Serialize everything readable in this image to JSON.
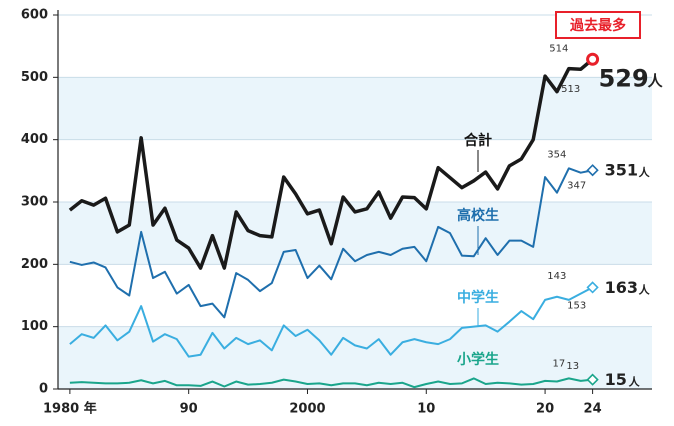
{
  "chart_data": {
    "type": "line",
    "x": [
      1980,
      1981,
      1982,
      1983,
      1984,
      1985,
      1986,
      1987,
      1988,
      1989,
      1990,
      1991,
      1992,
      1993,
      1994,
      1995,
      1996,
      1997,
      1998,
      1999,
      2000,
      2001,
      2002,
      2003,
      2004,
      2005,
      2006,
      2007,
      2008,
      2009,
      2010,
      2011,
      2012,
      2013,
      2014,
      2015,
      2016,
      2017,
      2018,
      2019,
      2020,
      2021,
      2022,
      2023,
      2024
    ],
    "series": [
      {
        "name": "合計",
        "color": "#1a1a1a",
        "values": [
          287,
          302,
          295,
          306,
          252,
          263,
          403,
          263,
          290,
          239,
          226,
          194,
          246,
          194,
          284,
          254,
          246,
          244,
          340,
          313,
          281,
          287,
          233,
          308,
          284,
          289,
          316,
          274,
          308,
          307,
          289,
          355,
          339,
          323,
          334,
          348,
          321,
          358,
          369,
          400,
          502,
          477,
          514,
          513,
          529
        ]
      },
      {
        "name": "高校生",
        "color": "#1f6fad",
        "values": [
          204,
          199,
          203,
          195,
          163,
          150,
          252,
          178,
          188,
          153,
          167,
          133,
          137,
          115,
          186,
          175,
          157,
          170,
          220,
          223,
          178,
          198,
          176,
          225,
          205,
          215,
          220,
          215,
          225,
          228,
          205,
          260,
          250,
          214,
          213,
          242,
          215,
          238,
          238,
          228,
          340,
          315,
          354,
          347,
          351
        ]
      },
      {
        "name": "中学生",
        "color": "#3aaee0",
        "values": [
          72,
          88,
          82,
          102,
          78,
          92,
          133,
          76,
          88,
          80,
          52,
          55,
          90,
          65,
          82,
          72,
          78,
          62,
          102,
          85,
          95,
          78,
          55,
          82,
          70,
          65,
          80,
          55,
          75,
          80,
          75,
          72,
          80,
          98,
          100,
          102,
          92,
          108,
          125,
          112,
          143,
          148,
          143,
          153,
          163
        ]
      },
      {
        "name": "小学生",
        "color": "#1aa58b",
        "values": [
          10,
          11,
          10,
          9,
          9,
          10,
          14,
          9,
          13,
          6,
          6,
          5,
          12,
          4,
          12,
          7,
          8,
          10,
          15,
          12,
          8,
          9,
          6,
          9,
          9,
          6,
          10,
          8,
          10,
          3,
          8,
          12,
          8,
          9,
          17,
          8,
          10,
          9,
          7,
          8,
          13,
          12,
          17,
          13,
          15
        ]
      }
    ],
    "end_unit": "人",
    "badge": "過去最多",
    "xlim": [
      1979,
      2029
    ],
    "xticks": [
      {
        "value": 1980,
        "label": "1980 年"
      },
      {
        "value": 1990,
        "label": "90"
      },
      2000,
      {
        "value": 2010,
        "label": "10"
      },
      {
        "value": 2020,
        "label": "20"
      },
      {
        "value": 2024,
        "label": "24"
      }
    ],
    "ylim": [
      0,
      600
    ],
    "yticks": [
      0,
      100,
      200,
      300,
      400,
      500,
      600
    ]
  }
}
